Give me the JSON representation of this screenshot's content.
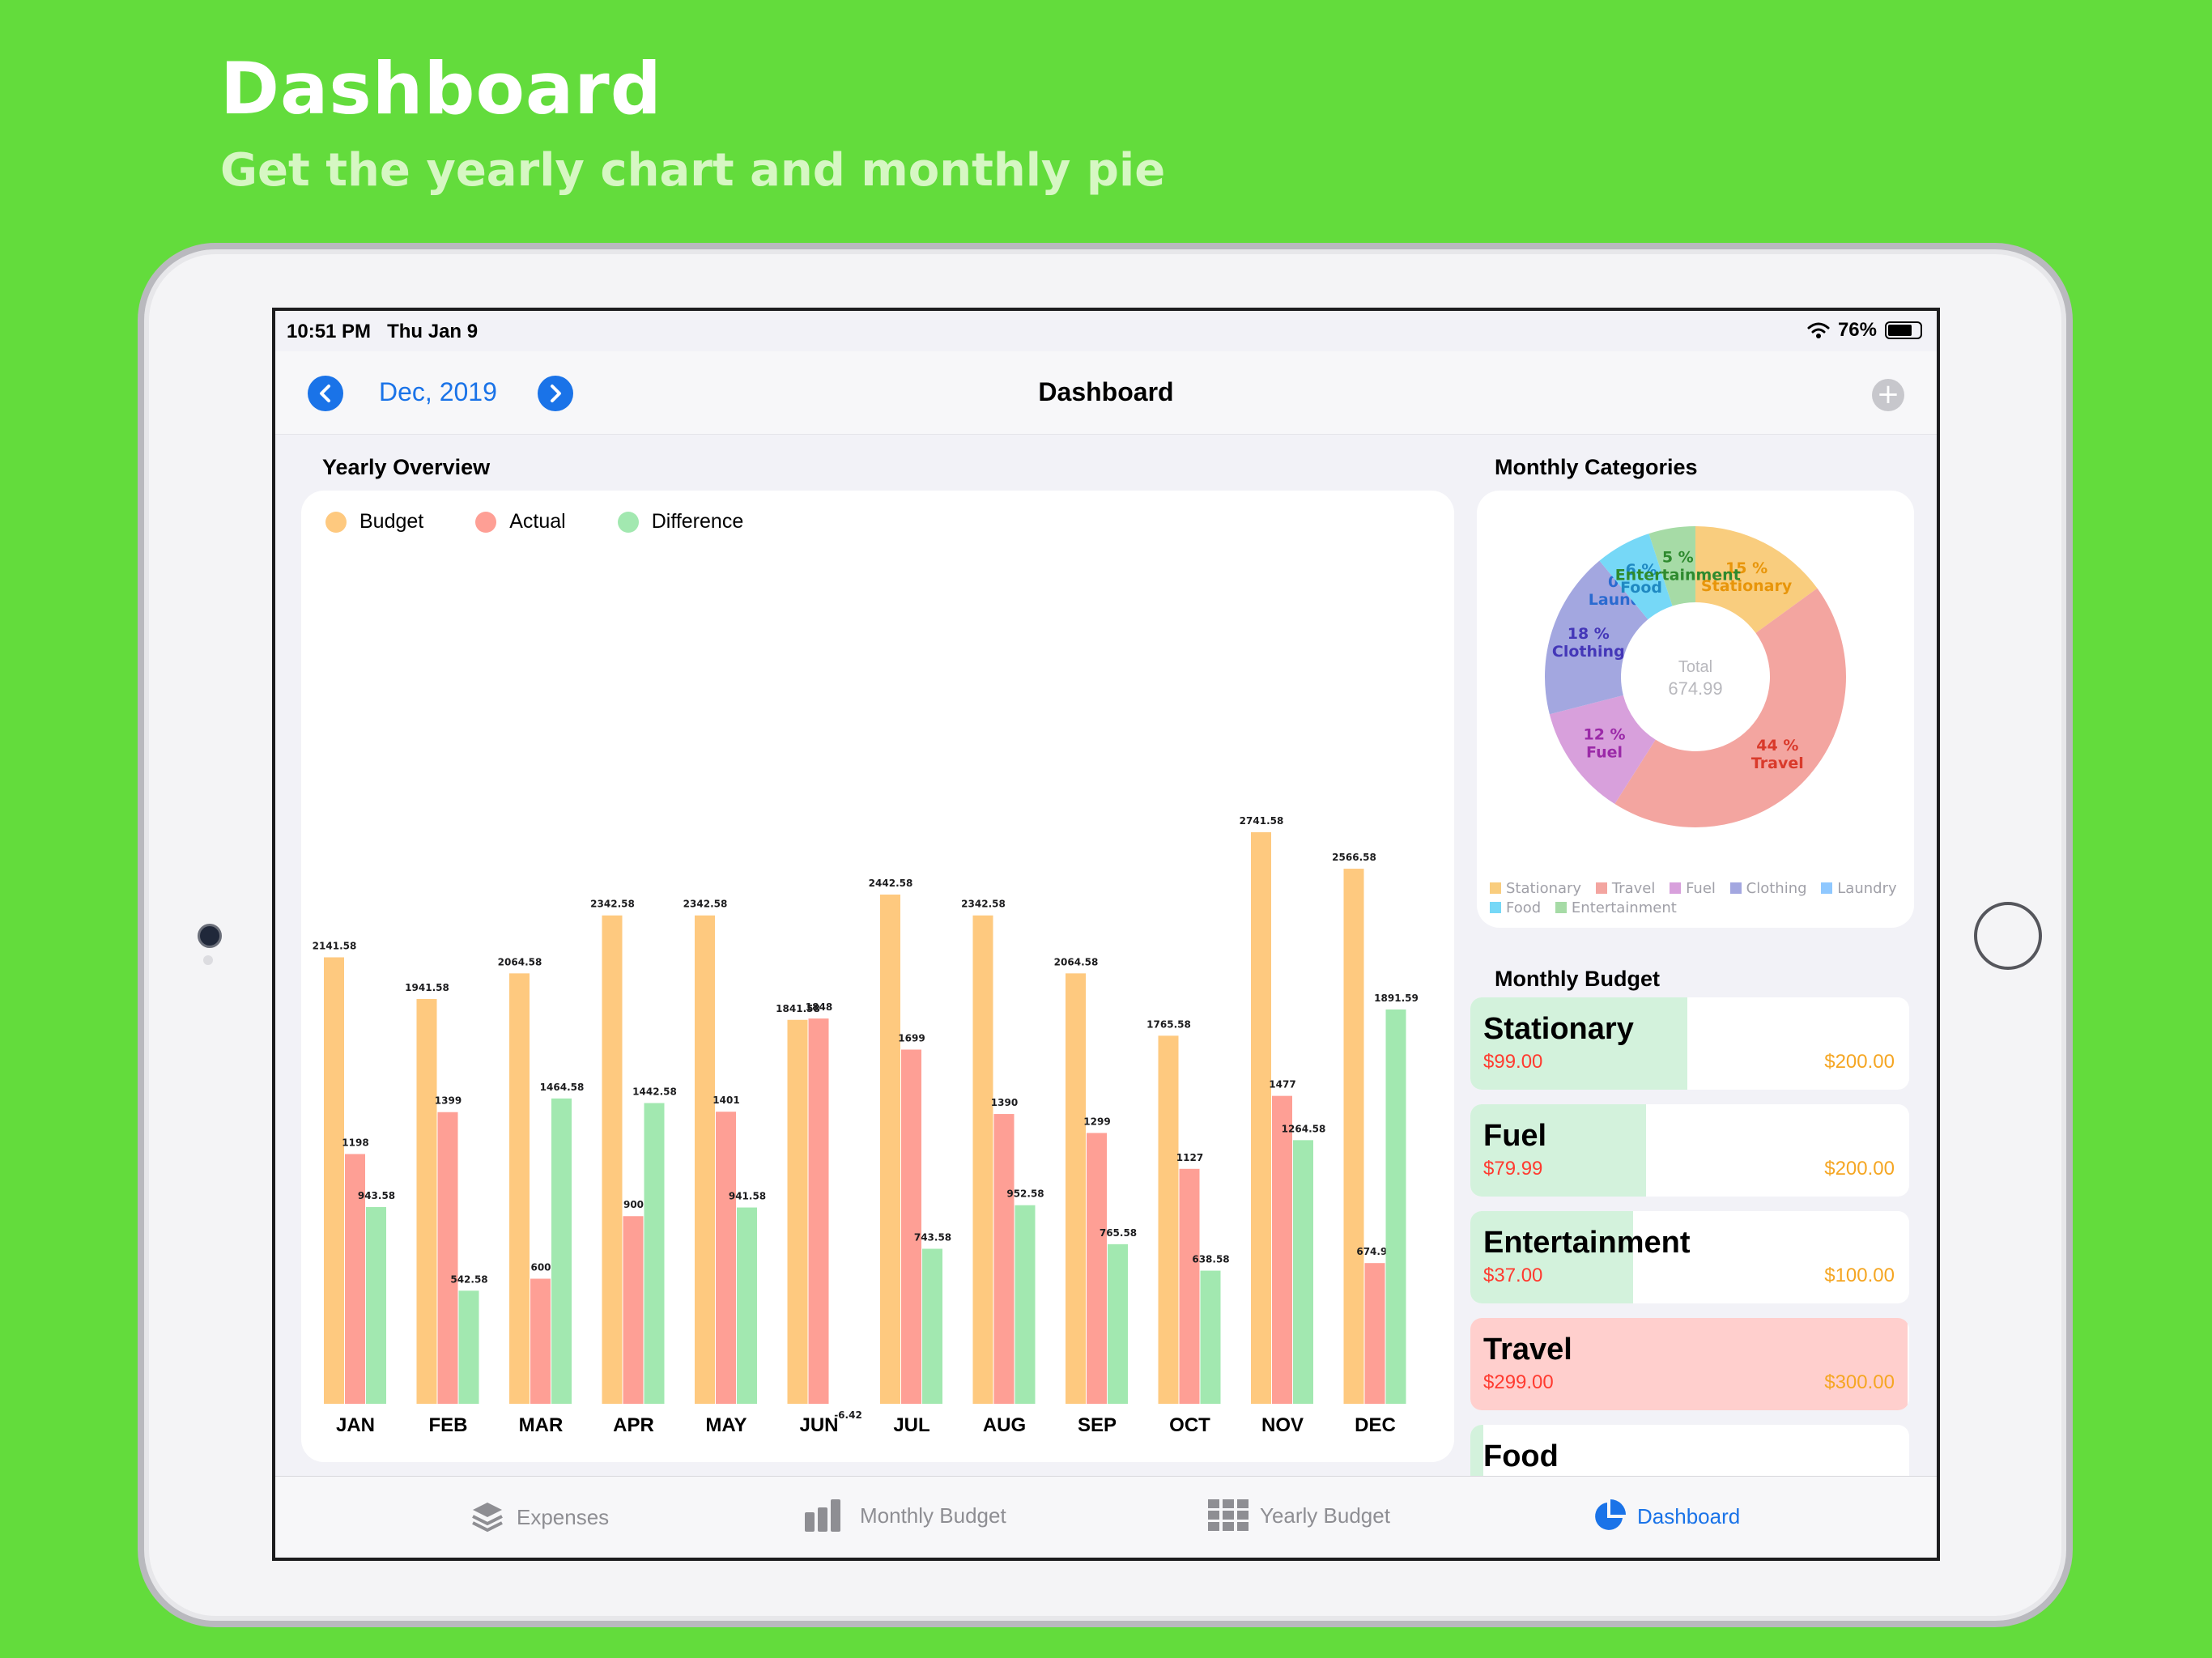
{
  "hero": {
    "title": "Dashboard",
    "subtitle": "Get the yearly chart and monthly pie"
  },
  "status": {
    "time": "10:51 PM",
    "date": "Thu Jan 9",
    "battery": "76%",
    "battery_level": 0.76
  },
  "nav": {
    "period": "Dec, 2019",
    "title": "Dashboard",
    "prev_icon": "chevron-left-icon",
    "next_icon": "chevron-right-icon",
    "add_icon": "plus-icon"
  },
  "yearly": {
    "label": "Yearly Overview",
    "legend": [
      {
        "label": "Budget",
        "color": "#fec97f"
      },
      {
        "label": "Actual",
        "color": "#fe9f95"
      },
      {
        "label": "Difference",
        "color": "#a2e8b0"
      }
    ]
  },
  "chart_data": {
    "type": "bar",
    "categories": [
      "JAN",
      "FEB",
      "MAR",
      "APR",
      "MAY",
      "JUN",
      "JUL",
      "AUG",
      "SEP",
      "OCT",
      "NOV",
      "DEC"
    ],
    "series": [
      {
        "name": "Budget",
        "values": [
          2141.58,
          1941.58,
          2064.58,
          2342.58,
          2342.58,
          1841.58,
          2442.58,
          2342.58,
          2064.58,
          1765.58,
          2741.58,
          2566.58
        ],
        "labels": [
          "2141.58",
          "1941.58",
          "2064.58",
          "2342.58",
          "2342.58",
          "1841.58",
          "2442.58",
          "2342.58",
          "2064.58",
          "1765.58",
          "2741.58",
          "2566.58"
        ]
      },
      {
        "name": "Actual",
        "values": [
          1198,
          1399,
          600,
          900,
          1401,
          1848,
          1699,
          1390,
          1299,
          1127,
          1477,
          674.99
        ],
        "labels": [
          "1198",
          "1399",
          "600",
          "900",
          "1401",
          "1848",
          "1699",
          "1390",
          "1299",
          "1127",
          "1477",
          "674.99"
        ]
      },
      {
        "name": "Difference",
        "values": [
          943.58,
          542.58,
          1464.58,
          1442.58,
          941.58,
          -6.42,
          743.58,
          952.58,
          765.58,
          638.58,
          1264.58,
          1891.59
        ],
        "labels": [
          "943.58",
          "542.58",
          "1464.58",
          "1442.58",
          "941.58",
          "-6.42",
          "743.58",
          "952.58",
          "765.58",
          "638.58",
          "1264.58",
          "1891.59"
        ]
      }
    ],
    "ylim": [
      0,
      2741.58
    ]
  },
  "monthly": {
    "label": "Monthly Categories",
    "total_label": "Total",
    "total_value": "674.99",
    "slices": [
      {
        "name": "Stationary",
        "value": 15,
        "pct": "15 %",
        "color": "#f9cd7e",
        "text_color": "#e8950a"
      },
      {
        "name": "Travel",
        "value": 44,
        "pct": "44 %",
        "color": "#f3a5a0",
        "text_color": "#d93a2b"
      },
      {
        "name": "Fuel",
        "value": 12,
        "pct": "12 %",
        "color": "#d8a0dc",
        "text_color": "#9b2aa8"
      },
      {
        "name": "Clothing",
        "value": 18,
        "pct": "18 %",
        "color": "#a3a7e0",
        "text_color": "#4437b8"
      },
      {
        "name": "Laundry",
        "value": 0,
        "pct": "0 %",
        "color": "#8fc8ff",
        "text_color": "#2a6ad0"
      },
      {
        "name": "Food",
        "value": 6,
        "pct": "6 %",
        "color": "#76d8f7",
        "text_color": "#1f89c2"
      },
      {
        "name": "Entertainment",
        "value": 5,
        "pct": "5 %",
        "color": "#a6dba6",
        "text_color": "#2e8a2e"
      }
    ]
  },
  "budget": {
    "label": "Monthly Budget",
    "items": [
      {
        "name": "Stationary",
        "actual": "$99.00",
        "limit": "$200.00",
        "ratio": 0.495,
        "fill": "#d3f2dc"
      },
      {
        "name": "Fuel",
        "actual": "$79.99",
        "limit": "$200.00",
        "ratio": 0.4,
        "fill": "#d3f2dc"
      },
      {
        "name": "Entertainment",
        "actual": "$37.00",
        "limit": "$100.00",
        "ratio": 0.37,
        "fill": "#d3f2dc"
      },
      {
        "name": "Travel",
        "actual": "$299.00",
        "limit": "$300.00",
        "ratio": 0.997,
        "fill": "#ffcfcd"
      },
      {
        "name": "Food",
        "actual": "",
        "limit": "",
        "ratio": 0.03,
        "fill": "#d3f2dc"
      }
    ]
  },
  "tabs": [
    {
      "label": "Expenses",
      "icon": "layers-icon",
      "active": false
    },
    {
      "label": "Monthly Budget",
      "icon": "bar-chart-icon",
      "active": false
    },
    {
      "label": "Yearly Budget",
      "icon": "grid-icon",
      "active": false
    },
    {
      "label": "Dashboard",
      "icon": "pie-chart-icon",
      "active": true
    }
  ]
}
